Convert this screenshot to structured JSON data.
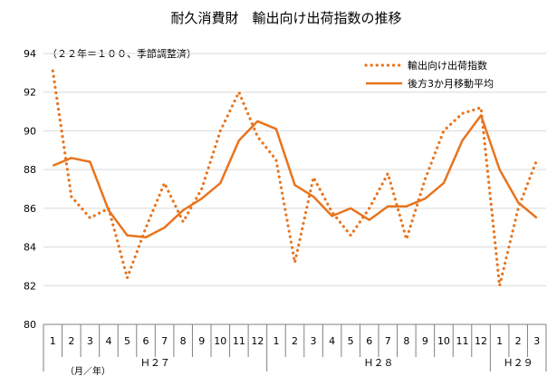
{
  "chart_data": {
    "type": "line",
    "title": "耐久消費財　輸出向け出荷指数の推移",
    "subtitle": "（２２年＝１００、季節調整済）",
    "xlabel": "（月／年）",
    "ylabel": "",
    "ylim": [
      80,
      94
    ],
    "y_ticks": [
      "80",
      "82",
      "84",
      "86",
      "88",
      "90",
      "92",
      "94"
    ],
    "grid": true,
    "legend_position": "top-right",
    "categories": [
      "1",
      "2",
      "3",
      "4",
      "5",
      "6",
      "7",
      "8",
      "9",
      "10",
      "11",
      "12",
      "1",
      "2",
      "3",
      "4",
      "5",
      "6",
      "7",
      "8",
      "9",
      "10",
      "11",
      "12",
      "1",
      "2",
      "3"
    ],
    "year_groups": [
      {
        "label": "Ｈ２７",
        "start": 0,
        "count": 12
      },
      {
        "label": "Ｈ２８",
        "start": 12,
        "count": 12
      },
      {
        "label": "Ｈ２９",
        "start": 24,
        "count": 3
      }
    ],
    "series": [
      {
        "name": "輸出向け出荷指数",
        "style": "dotted",
        "color": "#E8741E",
        "values": [
          93.1,
          86.6,
          85.5,
          86.0,
          82.4,
          85.0,
          87.3,
          85.3,
          87.0,
          90.0,
          92.0,
          89.7,
          88.5,
          83.2,
          87.6,
          85.8,
          84.6,
          86.0,
          87.8,
          84.4,
          87.5,
          90.0,
          90.9,
          91.2,
          82.0,
          86.0,
          88.5
        ]
      },
      {
        "name": "後方3か月移動平均",
        "style": "solid",
        "color": "#E8741E",
        "values": [
          88.2,
          88.6,
          88.4,
          85.9,
          84.6,
          84.5,
          85.0,
          85.9,
          86.5,
          87.3,
          89.5,
          90.5,
          90.1,
          87.2,
          86.6,
          85.6,
          86.0,
          85.4,
          86.1,
          86.1,
          86.5,
          87.3,
          89.5,
          90.8,
          88.0,
          86.3,
          85.5
        ]
      }
    ]
  }
}
